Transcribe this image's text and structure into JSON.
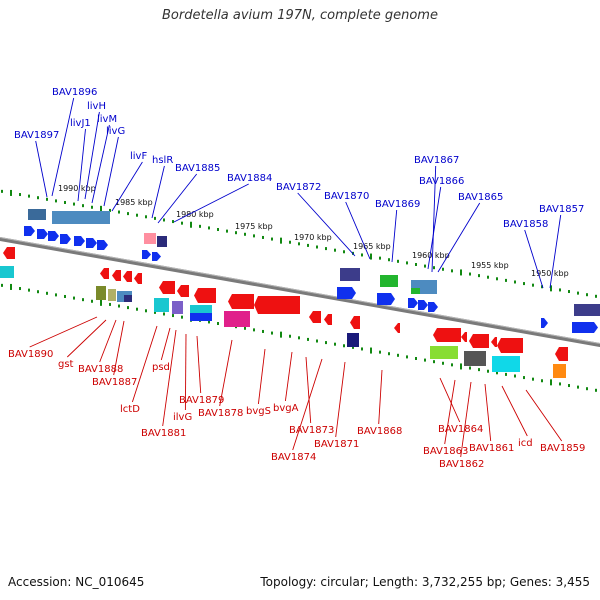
{
  "title": "Bordetella avium 197N, complete genome",
  "footer": {
    "accession": "Accession: NC_010645",
    "summary": "Topology: circular; Length: 3,732,255 bp; Genes: 3,455"
  },
  "colors": {
    "forward_strand": "#0000ee",
    "reverse_strand": "#ee0000",
    "top_label": "#0000cc",
    "bottom_label": "#cc0000",
    "tick": "#118811",
    "backbone": "#777777"
  },
  "scale_ticks": [
    "1990 kbp",
    "1985 kbp",
    "1980 kbp",
    "1975 kbp",
    "1970 kbp",
    "1965 kbp",
    "1960 kbp",
    "1955 kbp",
    "1950 kbp"
  ],
  "top_labels": [
    "BAV1896",
    "livH",
    "livJ1",
    "livM",
    "BAV1897",
    "livG",
    "livF",
    "hslR",
    "BAV1885",
    "BAV1884",
    "BAV1872",
    "BAV1870",
    "BAV1869",
    "BAV1867",
    "BAV1866",
    "BAV1865",
    "BAV1858",
    "BAV1857"
  ],
  "bottom_labels": [
    "BAV1890",
    "gst",
    "BAV1888",
    "BAV1887",
    "lctD",
    "psd",
    "BAV1881",
    "ilvG",
    "BAV1879",
    "BAV1878",
    "bvgS",
    "bvgA",
    "BAV1873",
    "BAV1874",
    "BAV1871",
    "BAV1868",
    "BAV1864",
    "BAV1863",
    "BAV1862",
    "BAV1861",
    "icd",
    "BAV1859"
  ]
}
